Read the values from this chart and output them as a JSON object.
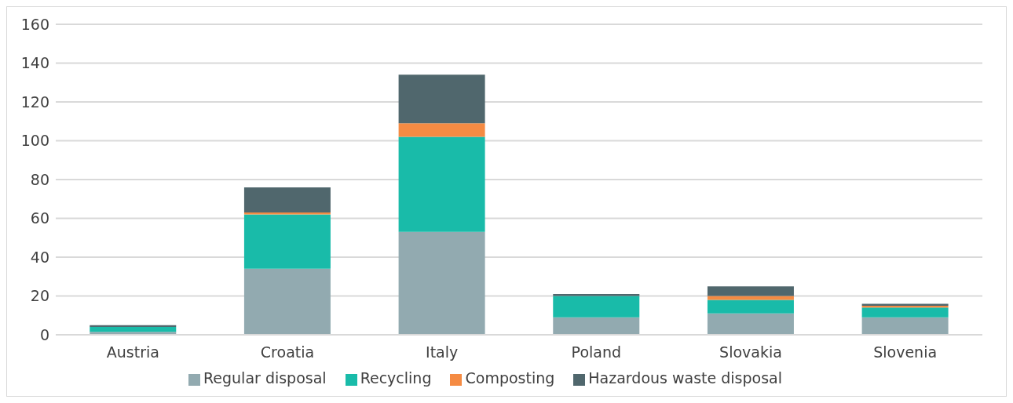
{
  "chart_data": {
    "type": "bar",
    "stacked": true,
    "categories": [
      "Austria",
      "Croatia",
      "Italy",
      "Poland",
      "Slovakia",
      "Slovenia"
    ],
    "series": [
      {
        "name": "Regular disposal",
        "color": "#92aab0",
        "values": [
          1.5,
          34,
          53,
          9,
          11,
          9
        ]
      },
      {
        "name": "Recycling",
        "color": "#19bba9",
        "values": [
          2.5,
          28,
          49,
          11,
          7,
          5
        ]
      },
      {
        "name": "Composting",
        "color": "#f58b43",
        "values": [
          0,
          1,
          7,
          0,
          2,
          1
        ]
      },
      {
        "name": "Hazardous waste disposal",
        "color": "#50676d",
        "values": [
          1,
          13,
          25,
          1,
          5,
          1
        ]
      }
    ],
    "ylim": [
      0,
      160
    ],
    "yticks": [
      0,
      20,
      40,
      60,
      80,
      100,
      120,
      140,
      160
    ],
    "grid": "y",
    "legend": "bottom"
  }
}
